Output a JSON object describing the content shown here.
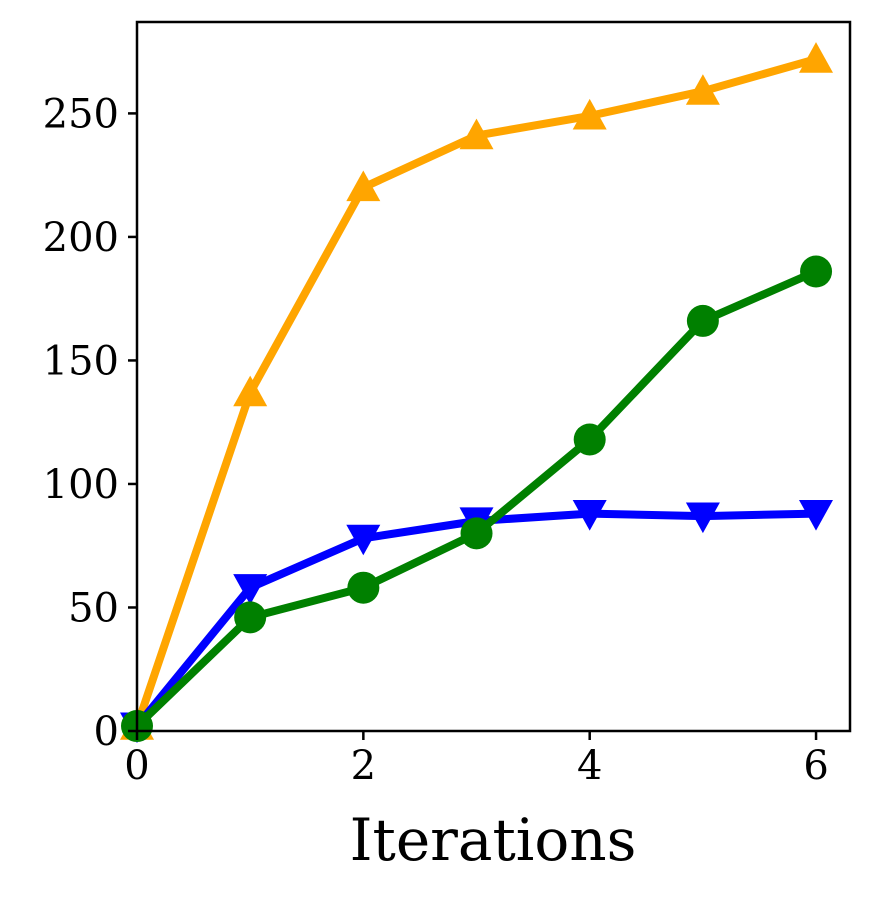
{
  "chart_data": {
    "type": "line",
    "title": "",
    "xlabel": "Iterations",
    "ylabel": "",
    "xlim": [
      0,
      6.3
    ],
    "ylim": [
      0,
      287
    ],
    "xticks": [
      "0",
      "2",
      "4",
      "6"
    ],
    "yticks": [
      "0",
      "50",
      "100",
      "150",
      "200",
      "250"
    ],
    "grid": false,
    "legend": "none",
    "x": [
      0,
      1,
      2,
      3,
      4,
      5,
      6
    ],
    "series": [
      {
        "color": "#FFA500",
        "marker": "triangle-up",
        "values": [
          2,
          137,
          220,
          241,
          249,
          259,
          272
        ]
      },
      {
        "color": "#0000FF",
        "marker": "triangle-down",
        "values": [
          2,
          58,
          78,
          85,
          88,
          87,
          88
        ]
      },
      {
        "color": "#008000",
        "marker": "circle",
        "values": [
          2,
          46,
          58,
          80,
          118,
          166,
          186
        ]
      }
    ]
  }
}
